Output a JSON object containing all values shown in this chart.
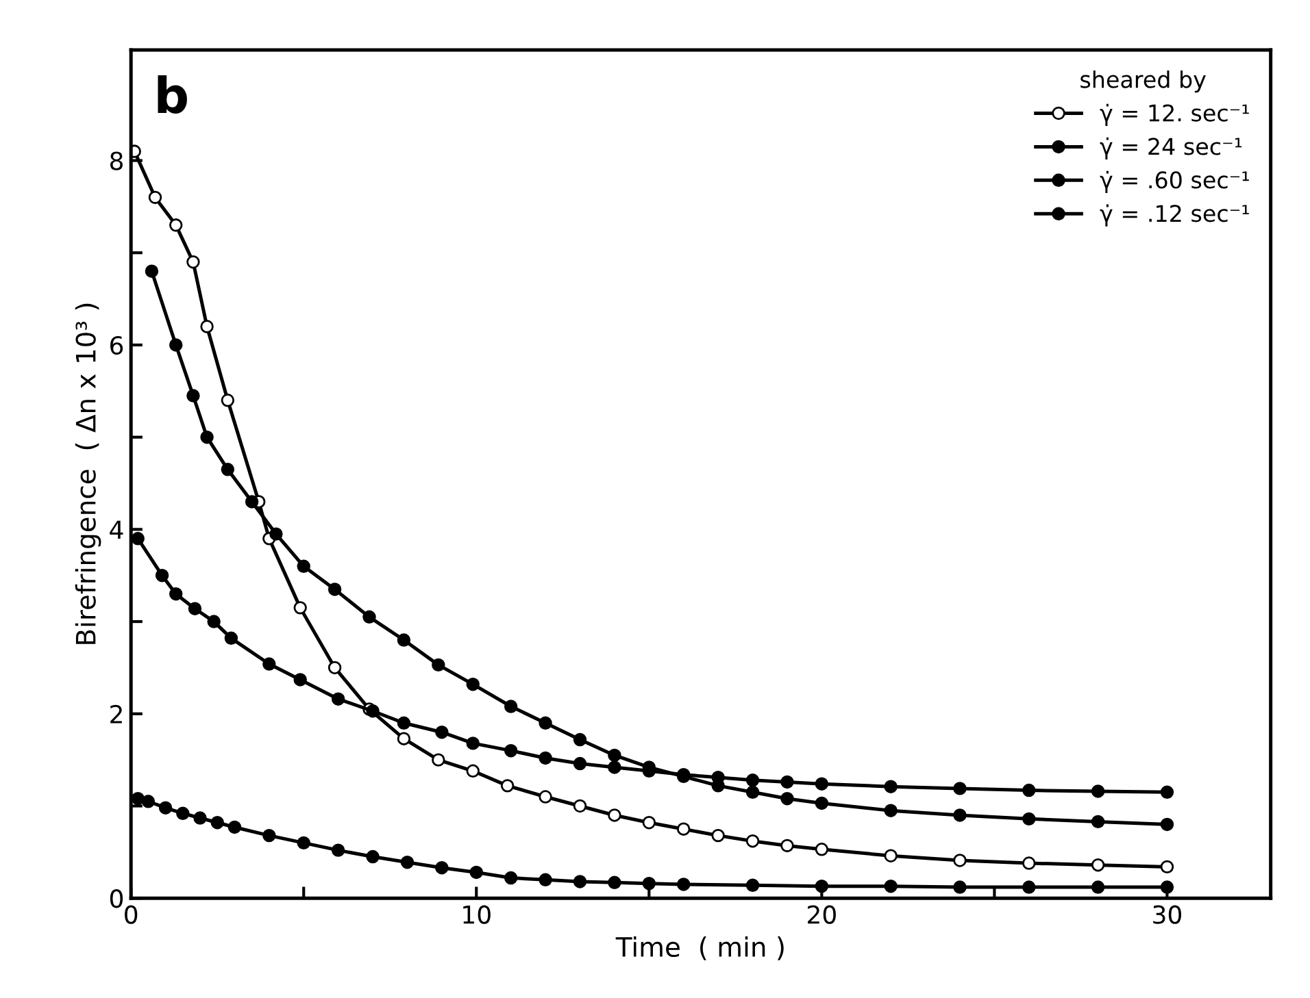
{
  "chart_data": {
    "type": "line",
    "xlabel": "Time  ( min )",
    "ylabel": "Birefringence  ( Δn x 10³ )",
    "legend_title": "sheared by",
    "annotations": [
      "b"
    ],
    "xlim": [
      0,
      33
    ],
    "ylim": [
      0,
      9.2
    ],
    "xticks": [
      0,
      {
        "value": 5,
        "label": null
      },
      10,
      {
        "value": 15,
        "label": null
      },
      20,
      {
        "value": 25,
        "label": null
      },
      30
    ],
    "yticks": [
      0,
      {
        "value": 1,
        "label": null
      },
      2,
      {
        "value": 3,
        "label": null
      },
      4,
      {
        "value": 5,
        "label": null
      },
      6,
      {
        "value": 7,
        "label": null
      },
      8
    ],
    "grid": false,
    "legend": "top right",
    "marker": "circle",
    "line_style": "solid",
    "series": [
      {
        "name": "γ̇ = 12. sec⁻¹",
        "color": "#000000",
        "marker": "circle_open",
        "x": [
          0.1,
          0.7,
          1.3,
          1.8,
          2.2,
          2.8,
          3.7,
          4.0,
          4.9,
          5.9,
          6.9,
          7.9,
          8.9,
          9.9,
          10.9,
          12,
          13,
          14,
          15,
          16,
          17,
          18,
          19,
          20,
          22,
          24,
          26,
          28,
          30
        ],
        "values": [
          8.1,
          7.6,
          7.3,
          6.9,
          6.2,
          5.4,
          4.3,
          3.9,
          3.15,
          2.5,
          2.05,
          1.73,
          1.5,
          1.38,
          1.22,
          1.1,
          1.0,
          0.9,
          0.82,
          0.75,
          0.68,
          0.62,
          0.57,
          0.53,
          0.46,
          0.41,
          0.38,
          0.36,
          0.34
        ]
      },
      {
        "name": "γ̇ = 24 sec⁻¹",
        "color": "#000000",
        "x": [
          0.6,
          1.3,
          1.8,
          2.2,
          2.8,
          3.5,
          4.2,
          5.0,
          5.9,
          6.9,
          7.9,
          8.9,
          9.9,
          11,
          12,
          13,
          14,
          15,
          16,
          17,
          18,
          19,
          20,
          22,
          24,
          26,
          28,
          30
        ],
        "values": [
          6.8,
          6.0,
          5.45,
          5.0,
          4.65,
          4.3,
          3.95,
          3.6,
          3.35,
          3.05,
          2.8,
          2.53,
          2.32,
          2.08,
          1.9,
          1.72,
          1.55,
          1.42,
          1.32,
          1.22,
          1.15,
          1.08,
          1.03,
          0.95,
          0.9,
          0.86,
          0.83,
          0.8
        ]
      },
      {
        "name": "γ̇ = .60 sec⁻¹",
        "color": "#000000",
        "x": [
          0.2,
          0.9,
          1.3,
          1.85,
          2.4,
          2.9,
          4.0,
          4.9,
          6,
          7,
          7.9,
          9,
          9.9,
          11,
          12,
          13,
          14,
          15,
          16,
          17,
          18,
          19,
          20,
          22,
          24,
          26,
          28,
          30
        ],
        "values": [
          3.9,
          3.5,
          3.3,
          3.14,
          3.0,
          2.82,
          2.54,
          2.37,
          2.16,
          2.03,
          1.9,
          1.8,
          1.68,
          1.6,
          1.52,
          1.46,
          1.42,
          1.38,
          1.34,
          1.31,
          1.28,
          1.26,
          1.24,
          1.21,
          1.19,
          1.17,
          1.16,
          1.15
        ]
      },
      {
        "name": "γ̇ = .12 sec⁻¹",
        "color": "#000000",
        "x": [
          0.2,
          0.5,
          1,
          1.5,
          2,
          2.5,
          3,
          4,
          5,
          6,
          7,
          8,
          9,
          10,
          11,
          12,
          13,
          14,
          15,
          16,
          18,
          20,
          22,
          24,
          26,
          28,
          30
        ],
        "values": [
          1.08,
          1.05,
          0.98,
          0.92,
          0.87,
          0.82,
          0.77,
          0.68,
          0.6,
          0.52,
          0.45,
          0.39,
          0.33,
          0.28,
          0.22,
          0.2,
          0.18,
          0.17,
          0.16,
          0.15,
          0.14,
          0.13,
          0.13,
          0.12,
          0.12,
          0.12,
          0.12
        ]
      }
    ]
  }
}
